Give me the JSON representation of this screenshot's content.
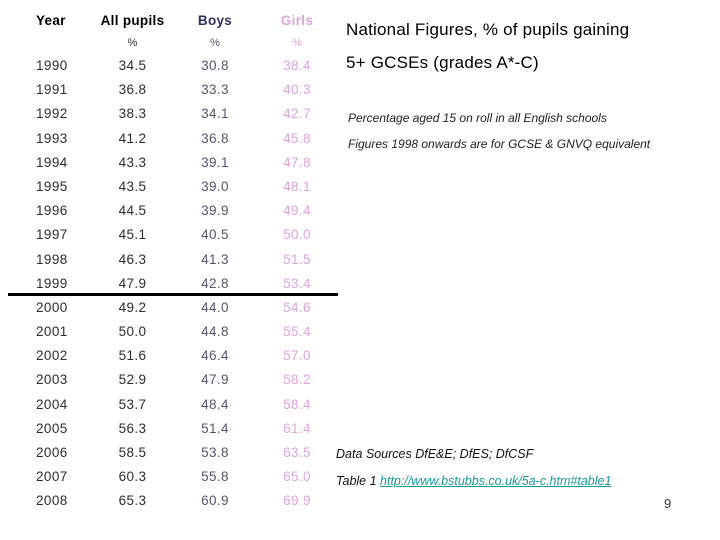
{
  "slide": {
    "title_line1": "National Figures, % of pupils gaining",
    "title_line2": "5+ GCSEs (grades A*-C)",
    "note_line1": "Percentage aged 15 on roll in all English schools",
    "note_line2": "Figures 1998 onwards are for GCSE & GNVQ equivalent",
    "page_number": "9"
  },
  "table": {
    "headers": {
      "year": "Year",
      "all": "All pupils",
      "boys": "Boys",
      "girls": "Girls"
    },
    "percent": "%",
    "rows": [
      {
        "year": "1990",
        "all": "34.5",
        "boys": "30.8",
        "girls": "38.4"
      },
      {
        "year": "1991",
        "all": "36.8",
        "boys": "33.3",
        "girls": "40.3"
      },
      {
        "year": "1992",
        "all": "38.3",
        "boys": "34.1",
        "girls": "42.7"
      },
      {
        "year": "1993",
        "all": "41.2",
        "boys": "36.8",
        "girls": "45.8"
      },
      {
        "year": "1994",
        "all": "43.3",
        "boys": "39.1",
        "girls": "47.8"
      },
      {
        "year": "1995",
        "all": "43.5",
        "boys": "39.0",
        "girls": "48.1"
      },
      {
        "year": "1996",
        "all": "44.5",
        "boys": "39.9",
        "girls": "49.4"
      },
      {
        "year": "1997",
        "all": "45.1",
        "boys": "40.5",
        "girls": "50.0"
      },
      {
        "year": "1998",
        "all": "46.3",
        "boys": "41.3",
        "girls": "51.5"
      },
      {
        "year": "1999",
        "all": "47.9",
        "boys": "42.8",
        "girls": "53.4"
      },
      {
        "year": "2000",
        "all": "49.2",
        "boys": "44.0",
        "girls": "54.6"
      },
      {
        "year": "2001",
        "all": "50.0",
        "boys": "44.8",
        "girls": "55.4"
      },
      {
        "year": "2002",
        "all": "51.6",
        "boys": "46.4",
        "girls": "57.0"
      },
      {
        "year": "2003",
        "all": "52.9",
        "boys": "47.9",
        "girls": "58.2"
      },
      {
        "year": "2004",
        "all": "53.7",
        "boys": "48.4",
        "girls": "58.4"
      },
      {
        "year": "2005",
        "all": "56.3",
        "boys": "51.4",
        "girls": "61.4"
      },
      {
        "year": "2006",
        "all": "58.5",
        "boys": "53.8",
        "girls": "63.5"
      },
      {
        "year": "2007",
        "all": "60.3",
        "boys": "55.8",
        "girls": "65.0"
      },
      {
        "year": "2008",
        "all": "65.3",
        "boys": "60.9",
        "girls": "69.9"
      }
    ]
  },
  "footer": {
    "data_sources": "Data Sources DfE&E; DfES; DfCSF",
    "table_ref": "Table 1",
    "link_text": "http://www.bstubbs.co.uk/5a-c.htm#table1"
  },
  "colors": {
    "boys_header": "#2F2F66",
    "boys_values": "#55556E",
    "girls": "#DFA3DD",
    "link": "#189A9A",
    "body_text": "#2E2E2E",
    "divider": "#000000"
  }
}
